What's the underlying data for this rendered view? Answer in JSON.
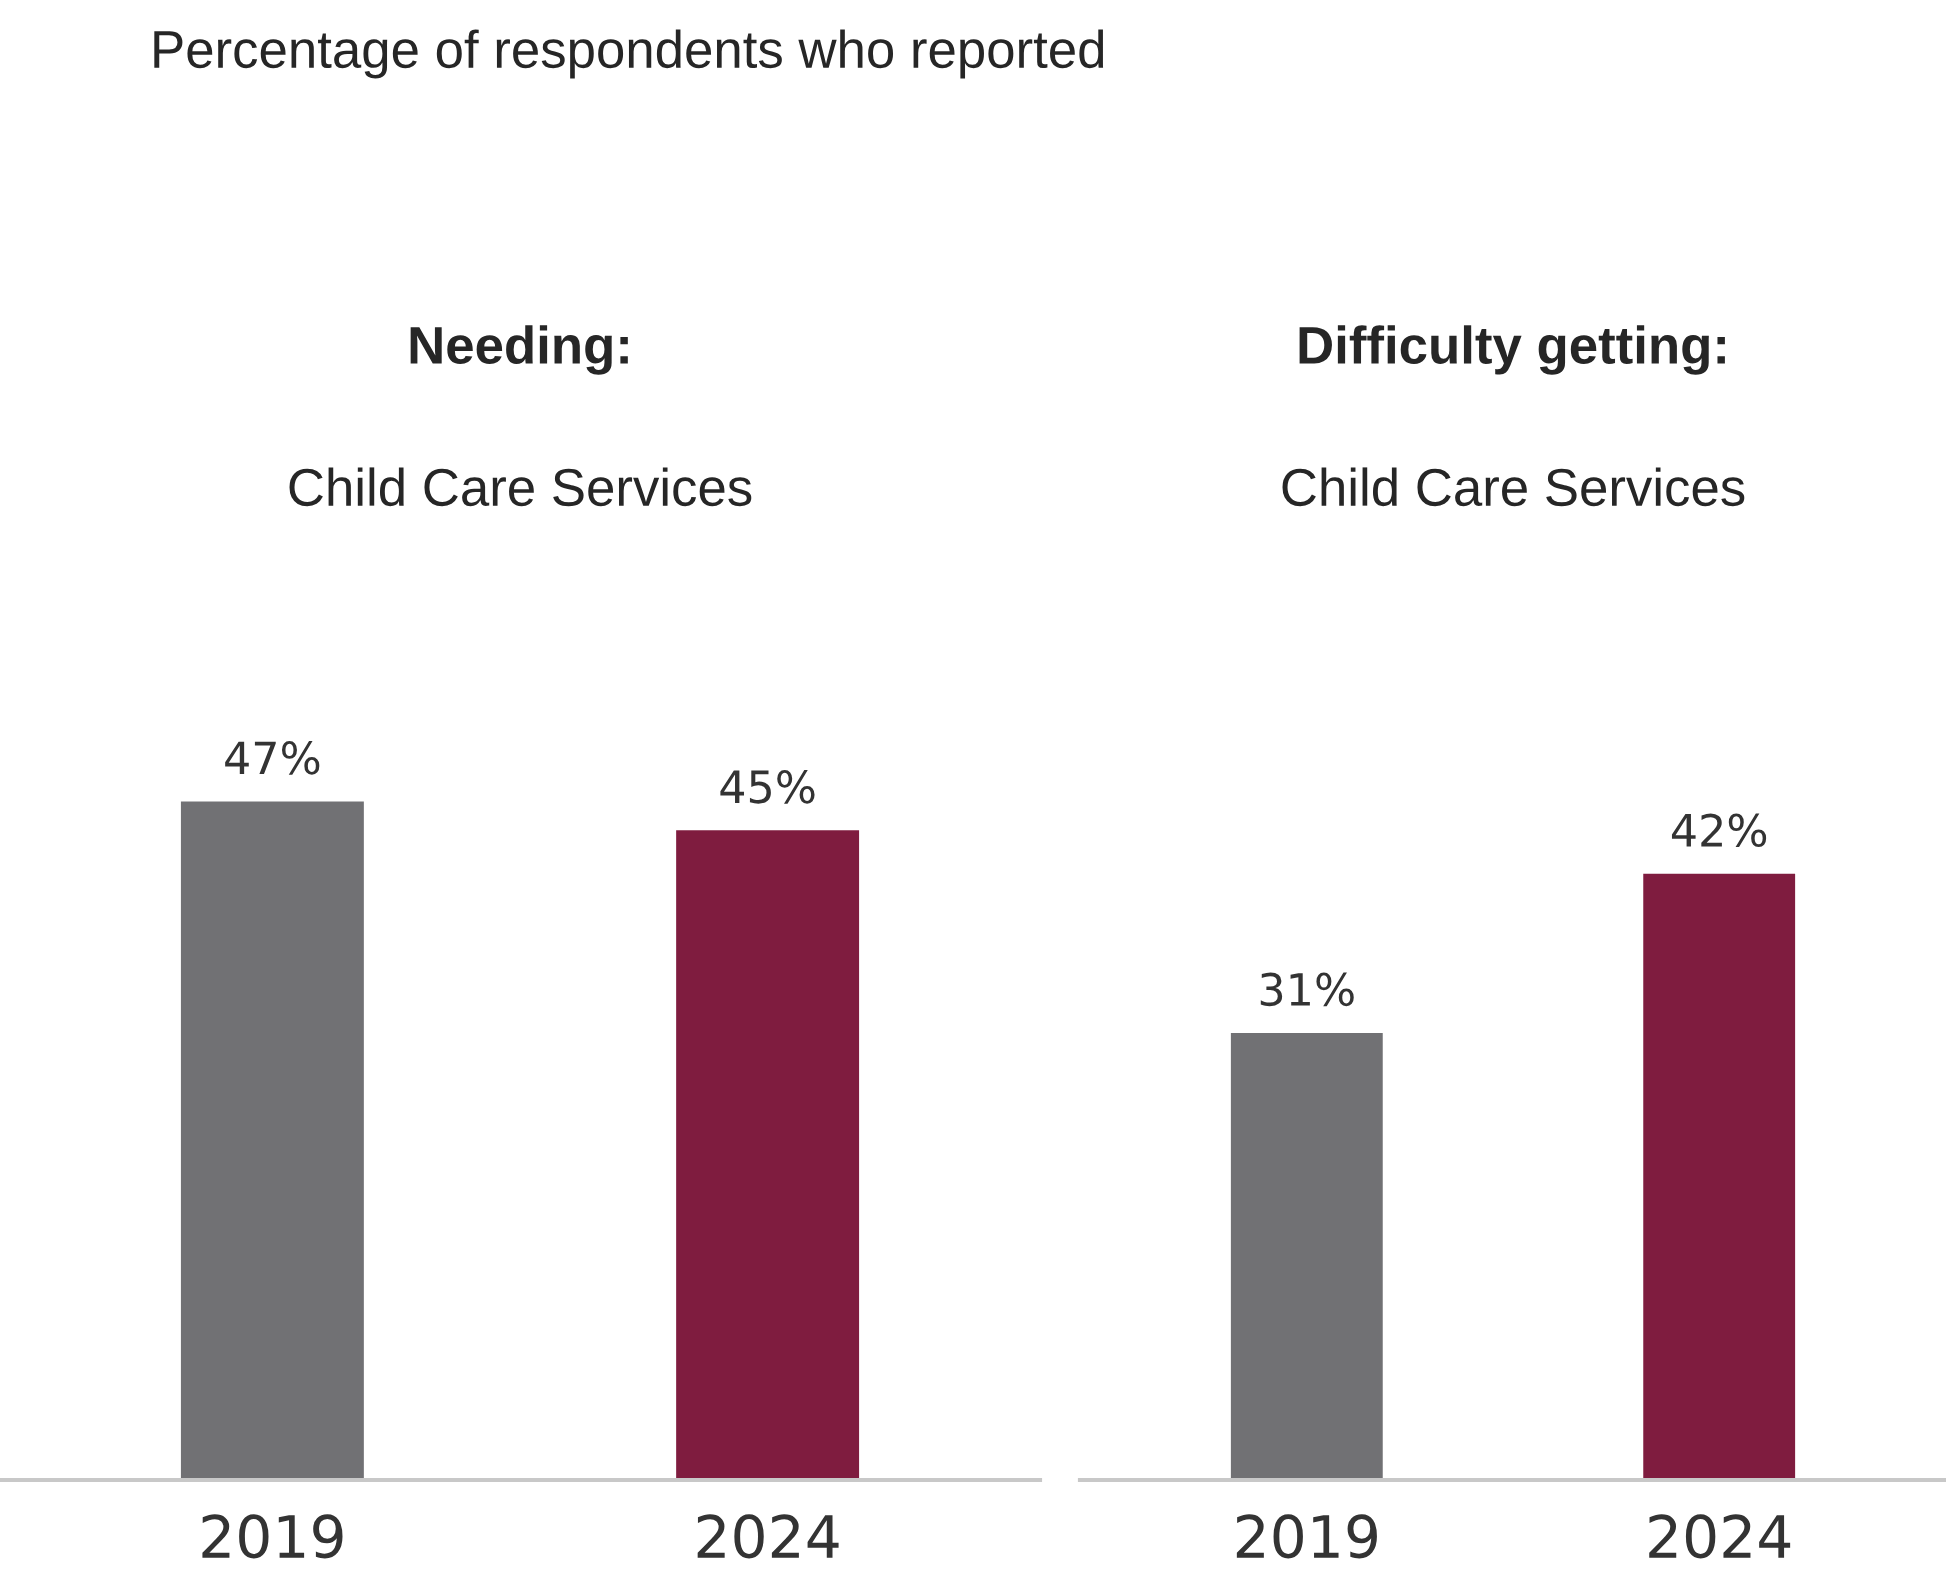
{
  "chart_data": [
    {
      "type": "bar",
      "title": "Needing:",
      "subtitle": "Child Care Services",
      "annotations": [
        "Percentage of respondents who reported"
      ],
      "categories": [
        "2019",
        "2024"
      ],
      "colors": [
        "#717174",
        "#7f1c3f"
      ],
      "values": [
        47,
        45
      ],
      "value_labels": [
        "47%",
        "45%"
      ]
    },
    {
      "type": "bar",
      "title": "Difficulty getting:",
      "subtitle": "Child Care Services",
      "categories": [
        "2019",
        "2024"
      ],
      "colors": [
        "#717174",
        "#7f1c3f"
      ],
      "values": [
        31,
        42
      ],
      "value_labels": [
        "31%",
        "42%"
      ]
    }
  ]
}
